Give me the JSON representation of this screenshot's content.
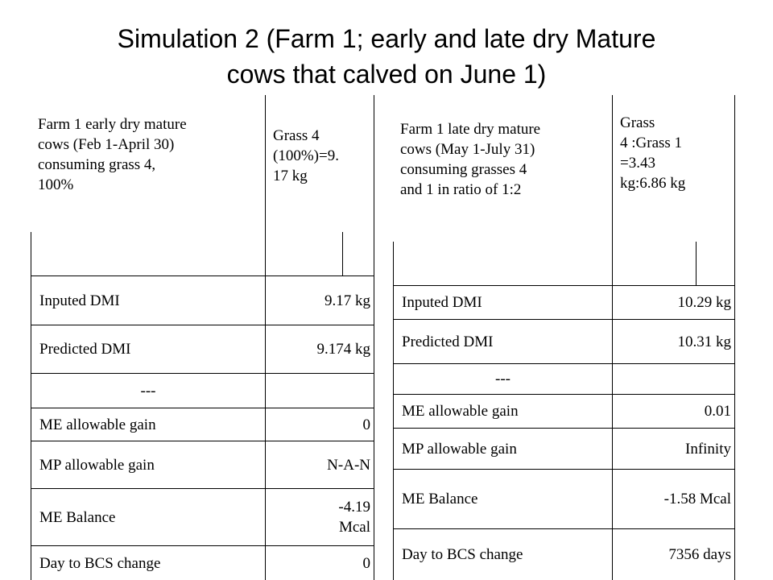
{
  "title": {
    "line1": "Simulation 2 (Farm 1; early and late dry Mature",
    "line2": "cows that calved on June 1)"
  },
  "left_table": {
    "header_label": [
      "Farm 1 early dry mature",
      "cows (Feb 1-April 30)",
      "consuming grass 4,",
      "100%"
    ],
    "header_value": [
      "Grass 4",
      "(100%)=9.",
      "17 kg"
    ],
    "rows": [
      {
        "label": "Inputed DMI",
        "value": "9.17 kg"
      },
      {
        "label": "Predicted DMI",
        "value": "9.174 kg"
      },
      {
        "label": "---",
        "value": ""
      },
      {
        "label": "ME allowable gain",
        "value": "0"
      },
      {
        "label": "MP allowable gain",
        "value": "N-A-N"
      },
      {
        "label": "ME Balance",
        "value": [
          "-4.19",
          "Mcal"
        ]
      },
      {
        "label": "Day to BCS change",
        "value": "0"
      }
    ]
  },
  "right_table": {
    "header_label": [
      "Farm 1 late dry mature",
      "cows (May 1-July 31)",
      "consuming  grasses 4",
      "and 1 in ratio of 1:2"
    ],
    "header_value": [
      "Grass",
      "4 :Grass 1",
      "=3.43",
      "kg:6.86 kg"
    ],
    "rows": [
      {
        "label": "Inputed DMI",
        "value": "10.29 kg"
      },
      {
        "label": "Predicted DMI",
        "value": "10.31 kg"
      },
      {
        "label": "---",
        "value": ""
      },
      {
        "label": "ME allowable gain",
        "value": "0.01"
      },
      {
        "label": "MP allowable gain",
        "value": "Infinity"
      },
      {
        "label": "ME Balance",
        "value": "-1.58 Mcal"
      },
      {
        "label": "Day to BCS change",
        "value": "7356 days"
      }
    ]
  }
}
